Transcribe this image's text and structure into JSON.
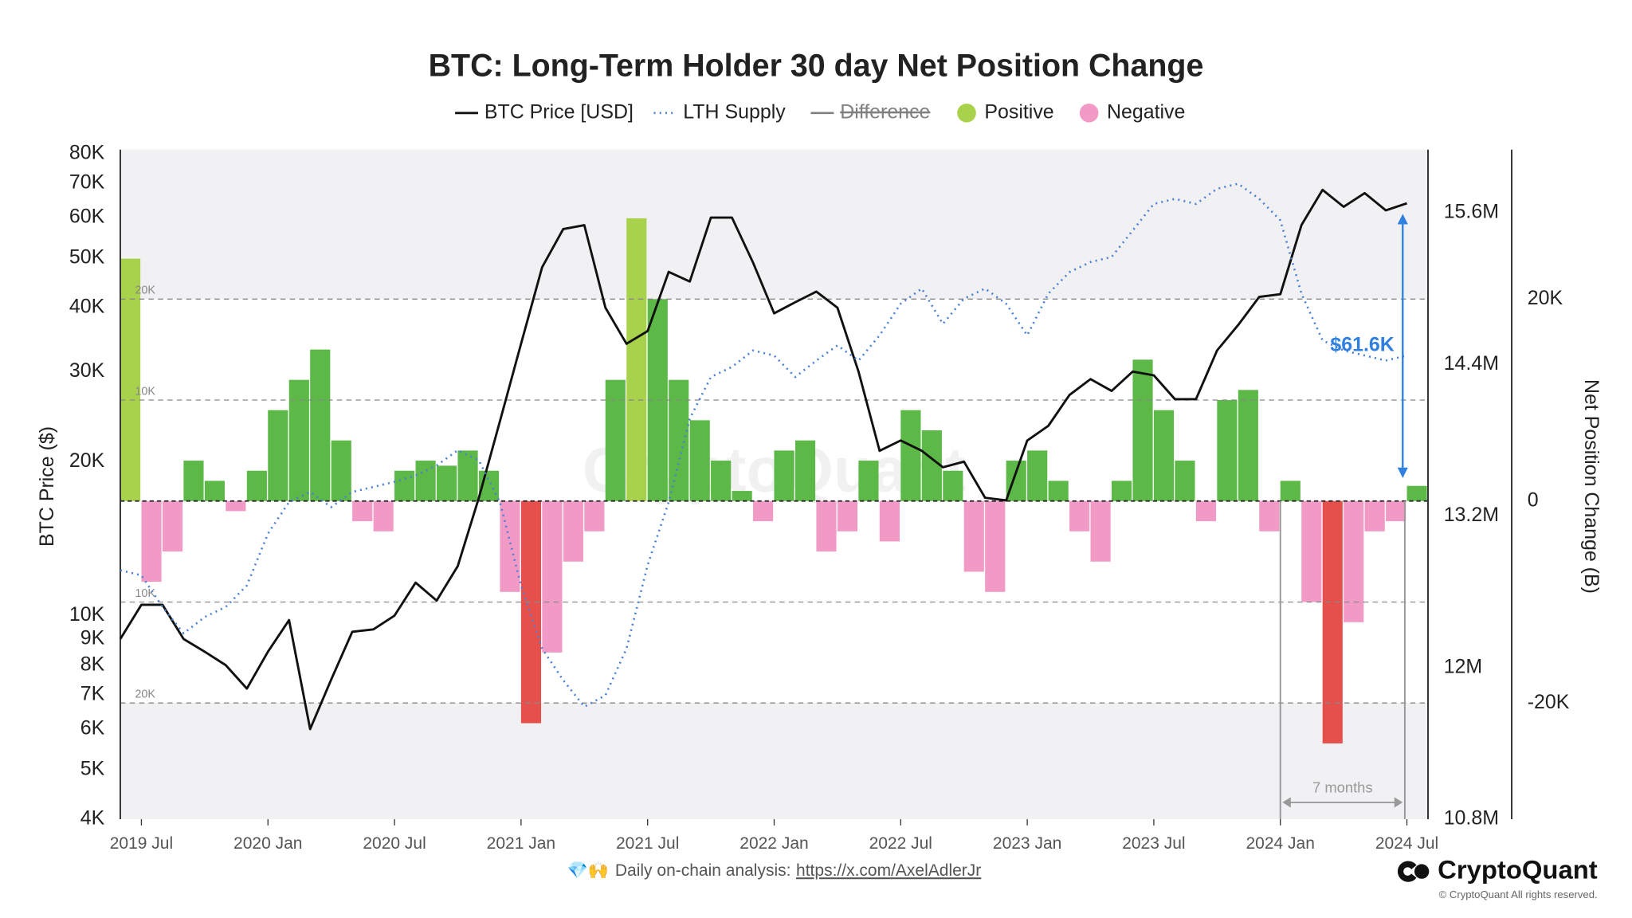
{
  "chart_data": {
    "type": "dual-axis-line-bar",
    "title": "BTC: Long-Term Holder 30 day Net Position Change",
    "left_axis_label": "BTC Price ($)",
    "right_axis_label": "Net Position Change (B)",
    "watermark": "CryptoQuant",
    "x": [
      "2019-06",
      "2019-07",
      "2019-08",
      "2019-09",
      "2019-10",
      "2019-11",
      "2019-12",
      "2020-01",
      "2020-02",
      "2020-03",
      "2020-04",
      "2020-05",
      "2020-06",
      "2020-07",
      "2020-08",
      "2020-09",
      "2020-10",
      "2020-11",
      "2020-12",
      "2021-01",
      "2021-02",
      "2021-03",
      "2021-04",
      "2021-05",
      "2021-06",
      "2021-07",
      "2021-08",
      "2021-09",
      "2021-10",
      "2021-11",
      "2021-12",
      "2022-01",
      "2022-02",
      "2022-03",
      "2022-04",
      "2022-05",
      "2022-06",
      "2022-07",
      "2022-08",
      "2022-09",
      "2022-10",
      "2022-11",
      "2022-12",
      "2023-01",
      "2023-02",
      "2023-03",
      "2023-04",
      "2023-05",
      "2023-06",
      "2023-07",
      "2023-08",
      "2023-09",
      "2023-10",
      "2023-11",
      "2023-12",
      "2024-01",
      "2024-02",
      "2024-03",
      "2024-04",
      "2024-05",
      "2024-06",
      "2024-07"
    ],
    "xlim": [
      "2019-06",
      "2024-08"
    ],
    "xticks": [
      {
        "value": "2019-07",
        "label": "2019 Jul"
      },
      {
        "value": "2020-01",
        "label": "2020 Jan"
      },
      {
        "value": "2020-07",
        "label": "2020 Jul"
      },
      {
        "value": "2021-01",
        "label": "2021 Jan"
      },
      {
        "value": "2021-07",
        "label": "2021 Jul"
      },
      {
        "value": "2022-01",
        "label": "2022 Jan"
      },
      {
        "value": "2022-07",
        "label": "2022 Jul"
      },
      {
        "value": "2023-01",
        "label": "2023 Jan"
      },
      {
        "value": "2023-07",
        "label": "2023 Jul"
      },
      {
        "value": "2024-01",
        "label": "2024 Jan"
      },
      {
        "value": "2024-07",
        "label": "2024 Jul"
      }
    ],
    "ylim": [
      4000,
      81500
    ],
    "log_y": true,
    "yticks": [
      {
        "value": 4000,
        "label": "4K"
      },
      {
        "value": 5000,
        "label": "5K"
      },
      {
        "value": 6000,
        "label": "6K"
      },
      {
        "value": 7000,
        "label": "7K"
      },
      {
        "value": 8000,
        "label": "8K"
      },
      {
        "value": 9000,
        "label": "9K"
      },
      {
        "value": 10000,
        "label": "10K"
      },
      {
        "value": 20000,
        "label": "20K"
      },
      {
        "value": 30000,
        "label": "30K"
      },
      {
        "value": 40000,
        "label": "40K"
      },
      {
        "value": 50000,
        "label": "50K"
      },
      {
        "value": 60000,
        "label": "60K"
      },
      {
        "value": 70000,
        "label": "70K"
      },
      {
        "value": 80000,
        "label": "80K"
      }
    ],
    "y2lim": [
      10800000,
      16100000
    ],
    "y2ticks": [
      {
        "value": 10800000,
        "label": "10.8M"
      },
      {
        "value": 12000000,
        "label": "12M"
      },
      {
        "value": 13200000,
        "label": "13.2M"
      },
      {
        "value": 14400000,
        "label": "14.4M"
      },
      {
        "value": 15600000,
        "label": "15.6M"
      }
    ],
    "y3lim": [
      -31500,
      34800
    ],
    "y3ticks": [
      {
        "value": -20000,
        "label": "-20K"
      },
      0,
      {
        "value": 20000,
        "label": "20K"
      }
    ],
    "net_guides": [
      {
        "value": 20000,
        "label": "20K"
      },
      {
        "value": 10000,
        "label": "10K"
      },
      {
        "value": -10000,
        "label": "10K"
      },
      {
        "value": -20000,
        "label": "20K"
      }
    ],
    "series": [
      {
        "name": "BTC Price [USD]",
        "color": "#111111",
        "axis": "y",
        "values": [
          9000,
          10500,
          10500,
          9000,
          8500,
          8000,
          7200,
          8500,
          9800,
          6000,
          7500,
          9300,
          9400,
          10000,
          11600,
          10700,
          12500,
          17000,
          24000,
          34000,
          48000,
          57000,
          58000,
          40000,
          34000,
          36000,
          47000,
          45000,
          60000,
          60000,
          49000,
          39000,
          41000,
          43000,
          40000,
          30000,
          21000,
          22000,
          21000,
          19500,
          20000,
          17000,
          16800,
          22000,
          23500,
          27000,
          29000,
          27500,
          30000,
          29500,
          26500,
          26500,
          33000,
          37000,
          42000,
          42500,
          58000,
          68000,
          63000,
          67000,
          62000,
          64000
        ]
      },
      {
        "name": "LTH Supply",
        "color": "#4a7fd4",
        "axis": "y2",
        "values": [
          12770000,
          12730000,
          12480000,
          12270000,
          12400000,
          12480000,
          12650000,
          13060000,
          13310000,
          13390000,
          13270000,
          13390000,
          13430000,
          13470000,
          13520000,
          13600000,
          13720000,
          13640000,
          13310000,
          12650000,
          12150000,
          11900000,
          11690000,
          11780000,
          12150000,
          12810000,
          13310000,
          13970000,
          14300000,
          14380000,
          14510000,
          14470000,
          14300000,
          14430000,
          14550000,
          14430000,
          14630000,
          14880000,
          15000000,
          14720000,
          14920000,
          15000000,
          14880000,
          14630000,
          14960000,
          15130000,
          15210000,
          15250000,
          15460000,
          15670000,
          15710000,
          15670000,
          15790000,
          15830000,
          15710000,
          15540000,
          14960000,
          14590000,
          14510000,
          14470000,
          14430000,
          14470000
        ]
      }
    ],
    "hidden_series": [
      {
        "name": "Difference",
        "color": "#808080"
      }
    ],
    "net_change": {
      "axis": "y3",
      "positive_name": "Positive",
      "negative_name": "Negative",
      "positive_color": "#5cb847",
      "positive_strong_color": "#a9d24c",
      "negative_color": "#f29ac6",
      "negative_strong_color": "#e5504c",
      "values": [
        24000,
        -8000,
        -5000,
        4000,
        2000,
        -1000,
        3000,
        9000,
        12000,
        15000,
        6000,
        -2000,
        -3000,
        3000,
        4000,
        3500,
        5000,
        3000,
        -9000,
        -22000,
        -15000,
        -6000,
        -3000,
        12000,
        28000,
        20000,
        12000,
        8000,
        4000,
        1000,
        -2000,
        5000,
        6000,
        -5000,
        -3000,
        4000,
        -4000,
        9000,
        7000,
        3000,
        -7000,
        -9000,
        4000,
        5000,
        2000,
        -3000,
        -6000,
        2000,
        14000,
        9000,
        4000,
        -2000,
        10000,
        11000,
        -3000,
        2000,
        -10000,
        -24000,
        -12000,
        -3000,
        -2000,
        1500
      ]
    },
    "price_annotation": {
      "text": "$61.6K",
      "date": "2024-07",
      "value": 61600,
      "color": "#2f80e0"
    },
    "span_annotation": {
      "text": "7 months",
      "from": "2024-01",
      "to": "2024-07"
    },
    "footer": {
      "emoji": "💎🙌",
      "text": "Daily on-chain analysis:",
      "link": "https://x.com/AxelAdlerJr",
      "brand": "CryptoQuant",
      "copyright": "© CryptoQuant All rights reserved."
    }
  }
}
